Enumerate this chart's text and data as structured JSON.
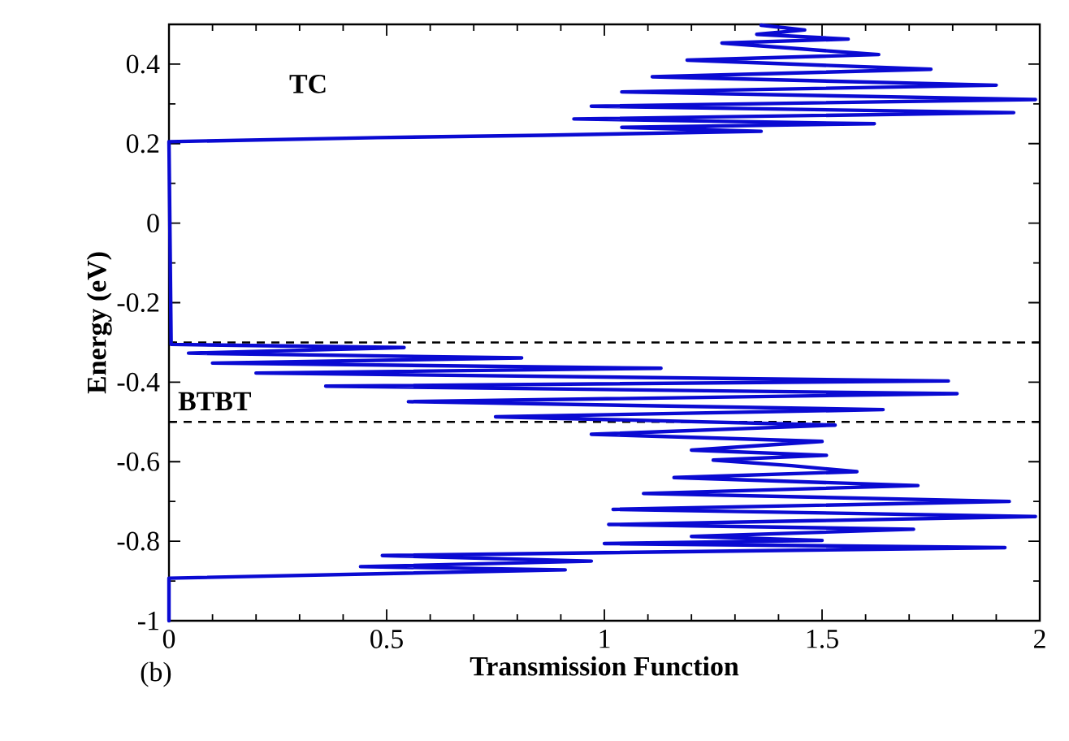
{
  "chart_data": {
    "type": "line",
    "xlabel": "Transmission Function",
    "ylabel": "Energy (eV)",
    "xlim": [
      0,
      2
    ],
    "ylim": [
      -1,
      0.5
    ],
    "xticks": [
      0,
      0.5,
      1,
      1.5,
      2
    ],
    "yticks": [
      -1,
      -0.8,
      -0.6,
      -0.4,
      -0.2,
      0,
      0.2,
      0.4
    ],
    "series": [
      {
        "color": "#0a0ad2",
        "x": [
          0,
          0,
          0.91,
          0.44,
          0.97,
          0.49,
          1.92,
          1.0,
          1.5,
          1.2,
          1.71,
          1.01,
          1.99,
          1.02,
          1.93,
          1.09,
          1.72,
          1.16,
          1.58,
          1.43,
          1.25,
          1.51,
          1.2,
          1.5,
          0.97,
          1.53,
          0.75,
          1.64,
          0.55,
          1.81,
          0.36,
          1.79,
          0.2,
          1.13,
          0.1,
          0.81,
          0.045,
          0.54,
          0.005,
          0,
          0.48,
          0.86,
          1.01,
          1.36,
          1.04,
          1.62,
          0.93,
          1.94,
          0.97,
          1.99,
          1.04,
          1.9,
          1.11,
          1.75,
          1.19,
          1.63,
          1.27,
          1.56,
          1.35,
          1.46,
          1.36
        ],
        "values": [
          -1,
          -0.893,
          -0.872,
          -0.864,
          -0.85,
          -0.836,
          -0.816,
          -0.806,
          -0.798,
          -0.788,
          -0.77,
          -0.758,
          -0.738,
          -0.72,
          -0.7,
          -0.68,
          -0.66,
          -0.64,
          -0.625,
          -0.61,
          -0.596,
          -0.584,
          -0.571,
          -0.549,
          -0.531,
          -0.508,
          -0.487,
          -0.469,
          -0.449,
          -0.429,
          -0.41,
          -0.397,
          -0.377,
          -0.365,
          -0.352,
          -0.339,
          -0.327,
          -0.313,
          -0.305,
          0.205,
          0.215,
          0.221,
          0.224,
          0.231,
          0.241,
          0.25,
          0.262,
          0.278,
          0.294,
          0.311,
          0.33,
          0.347,
          0.368,
          0.387,
          0.41,
          0.424,
          0.453,
          0.463,
          0.475,
          0.486,
          0.498
        ]
      }
    ],
    "ref_lines": [
      {
        "axis": "y",
        "value": -0.3,
        "color": "#000000",
        "line_style": "dashed"
      },
      {
        "axis": "y",
        "value": -0.5,
        "color": "#000000",
        "line_style": "dashed"
      }
    ],
    "annotations": [
      "TC",
      "BTBT",
      "(b)"
    ]
  }
}
